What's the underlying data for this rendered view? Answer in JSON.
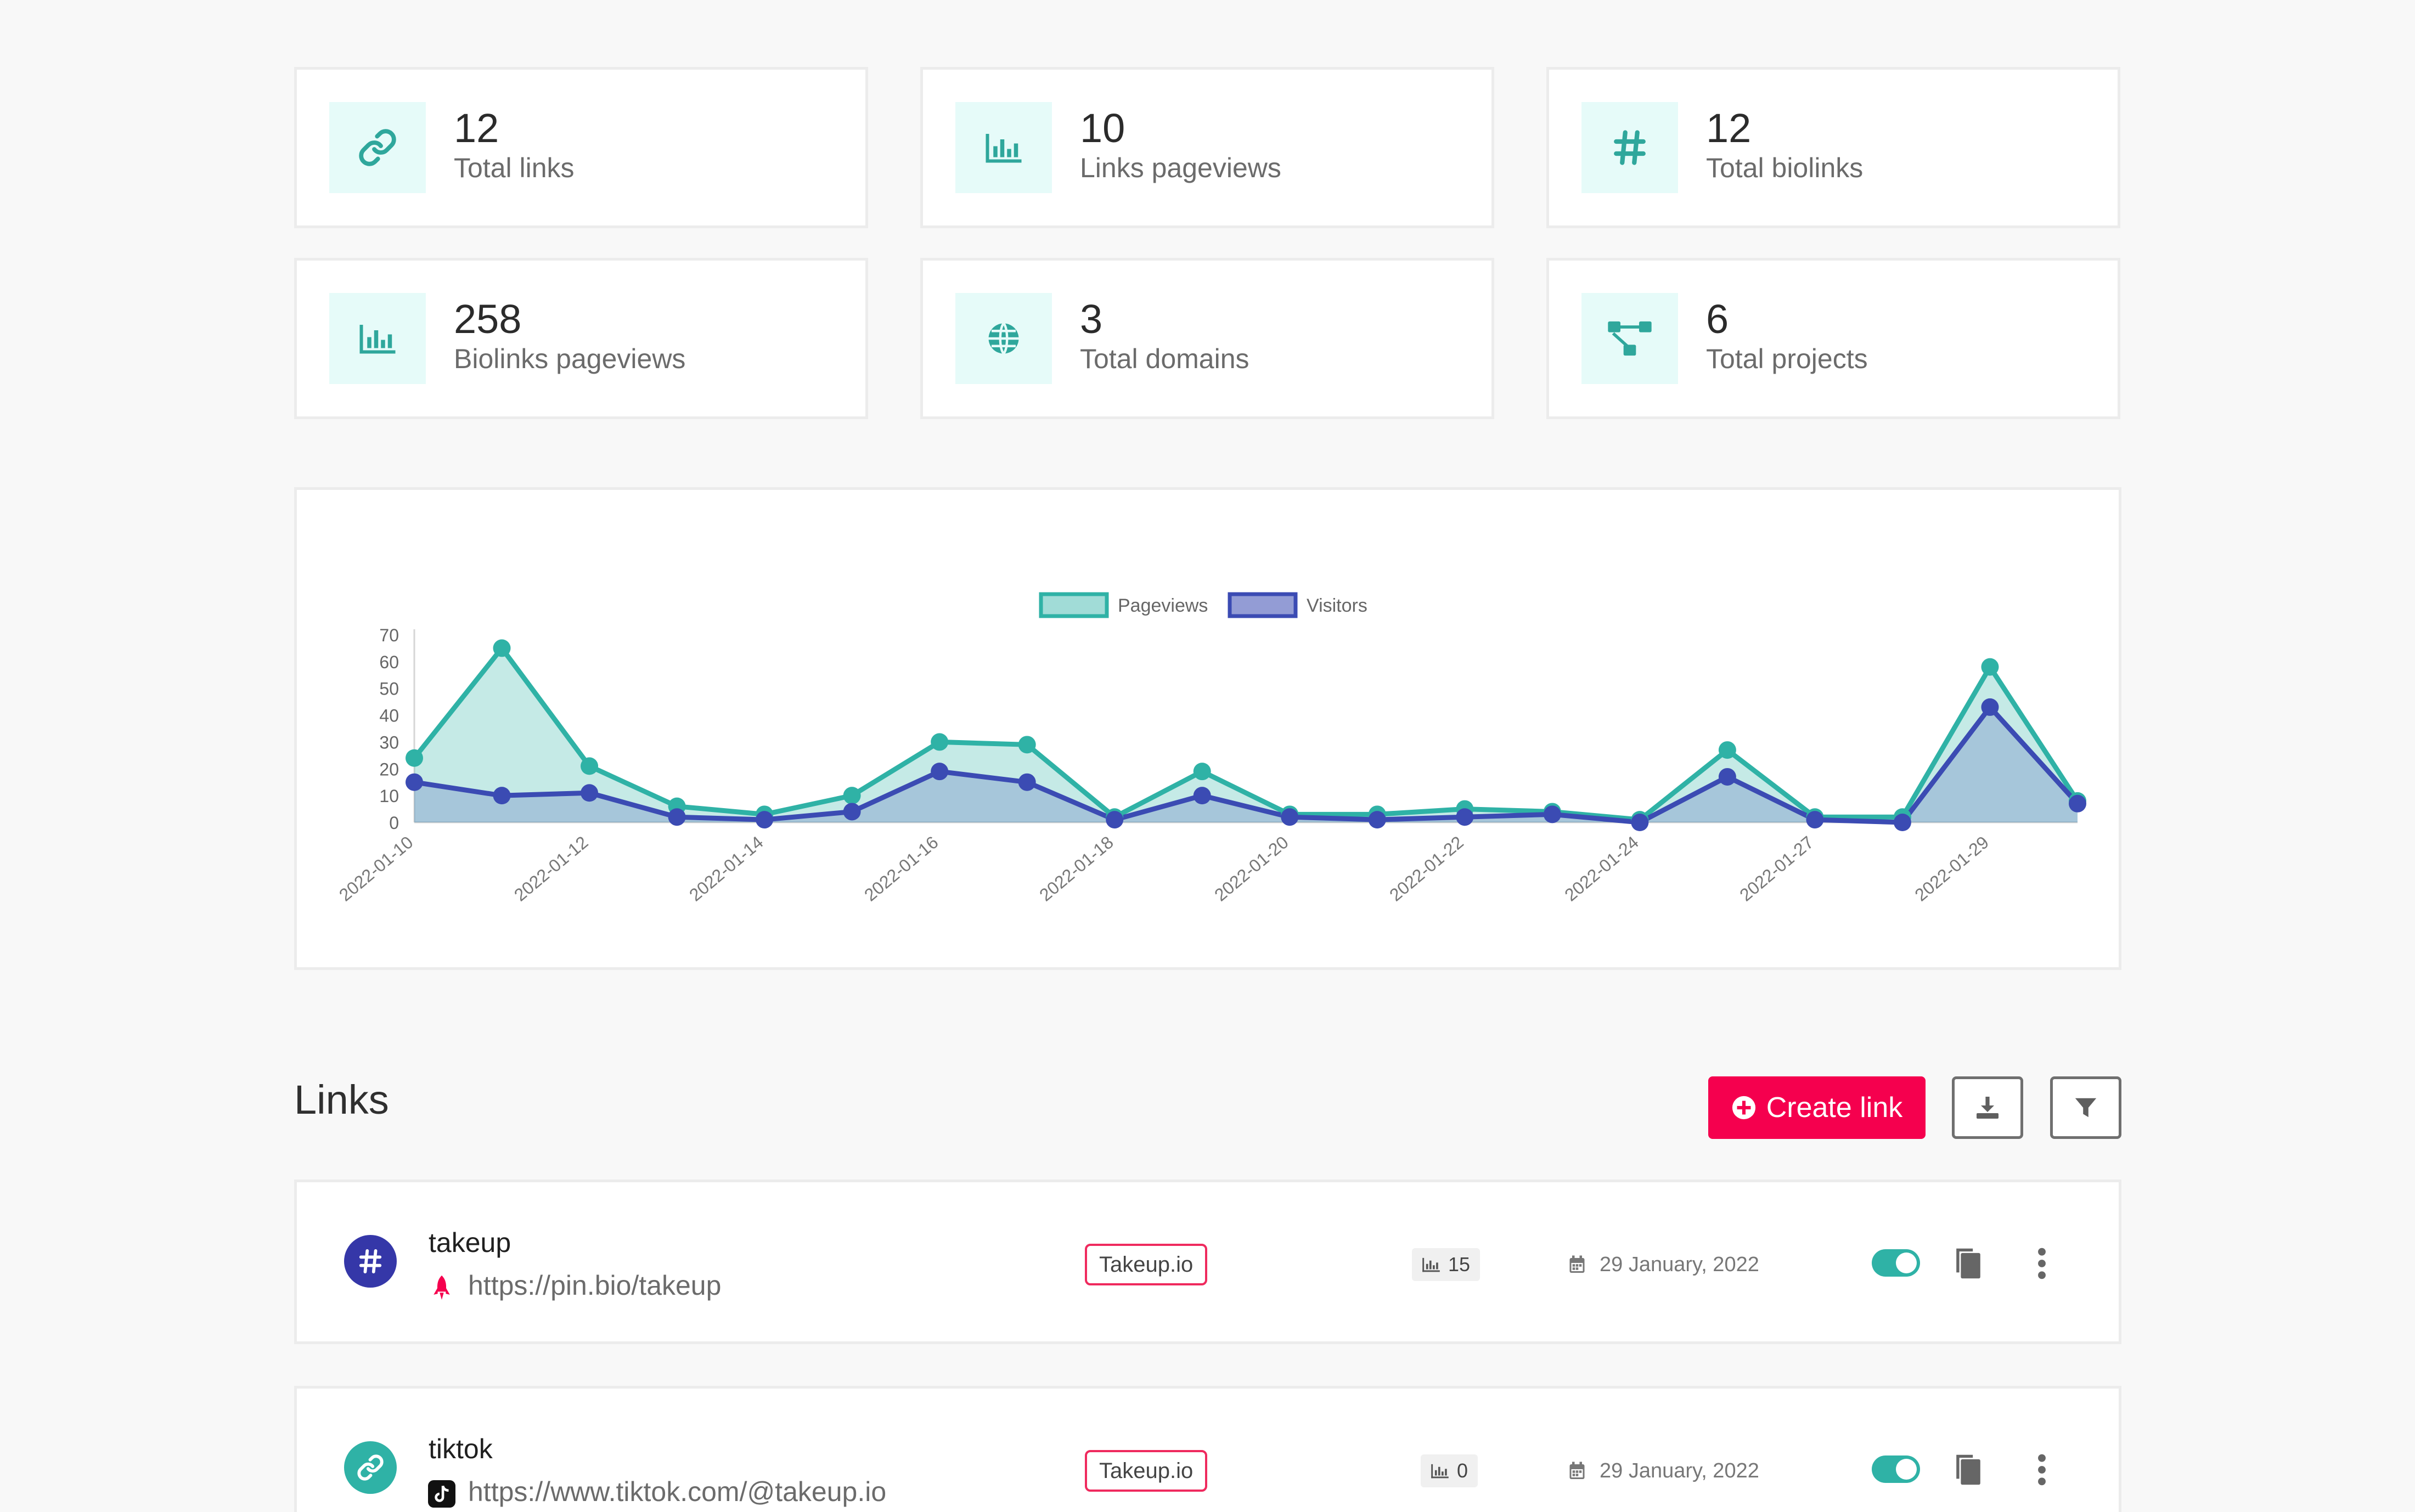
{
  "colors": {
    "accent": "#2fb2a6",
    "accent_soft": "#e6fbf9",
    "visitors": "#3b4bb3",
    "primary_button": "#f5004e",
    "domain_badge_border": "#ef2a5e",
    "biolink_avatar": "#3537a8"
  },
  "stats": [
    {
      "value": "12",
      "label": "Total links",
      "icon": "link-icon"
    },
    {
      "value": "10",
      "label": "Links pageviews",
      "icon": "bar-chart-icon"
    },
    {
      "value": "12",
      "label": "Total biolinks",
      "icon": "hashtag-icon"
    },
    {
      "value": "258",
      "label": "Biolinks pageviews",
      "icon": "bar-chart-icon"
    },
    {
      "value": "3",
      "label": "Total domains",
      "icon": "globe-icon"
    },
    {
      "value": "6",
      "label": "Total projects",
      "icon": "project-diagram-icon"
    }
  ],
  "chart_data": {
    "type": "area",
    "title": "",
    "xlabel": "",
    "ylabel": "",
    "ylim": [
      0,
      70
    ],
    "yticks": [
      0,
      10,
      20,
      30,
      40,
      50,
      60,
      70
    ],
    "x_tick_labels": [
      "2022-01-10",
      "2022-01-12",
      "2022-01-14",
      "2022-01-16",
      "2022-01-18",
      "2022-01-20",
      "2022-01-22",
      "2022-01-24",
      "2022-01-27",
      "2022-01-29"
    ],
    "legend_position": "top-center",
    "grid": false,
    "x": [
      "2022-01-10",
      "2022-01-11",
      "2022-01-12",
      "2022-01-13",
      "2022-01-14",
      "2022-01-15",
      "2022-01-16",
      "2022-01-17",
      "2022-01-18",
      "2022-01-19",
      "2022-01-20",
      "2022-01-21",
      "2022-01-22",
      "2022-01-23",
      "2022-01-24",
      "2022-01-26",
      "2022-01-27",
      "2022-01-28",
      "2022-01-29",
      "2022-01-30"
    ],
    "series": [
      {
        "name": "Pageviews",
        "values": [
          24,
          65,
          21,
          6,
          3,
          10,
          30,
          29,
          2,
          19,
          3,
          3,
          5,
          4,
          1,
          27,
          2,
          2,
          58,
          8
        ]
      },
      {
        "name": "Visitors",
        "values": [
          15,
          10,
          11,
          2,
          1,
          4,
          19,
          15,
          1,
          10,
          2,
          1,
          2,
          3,
          0,
          17,
          1,
          0,
          43,
          7
        ]
      }
    ]
  },
  "links_section": {
    "title": "Links",
    "create_label": "Create link"
  },
  "links": [
    {
      "name": "takeup",
      "url": "https://pin.bio/takeup",
      "domain": "Takeup.io",
      "pageviews": "15",
      "date": "29 January, 2022"
    },
    {
      "name": "tiktok",
      "url": "https://www.tiktok.com/@takeup.io",
      "domain": "Takeup.io",
      "pageviews": "0",
      "date": "29 January, 2022"
    }
  ]
}
